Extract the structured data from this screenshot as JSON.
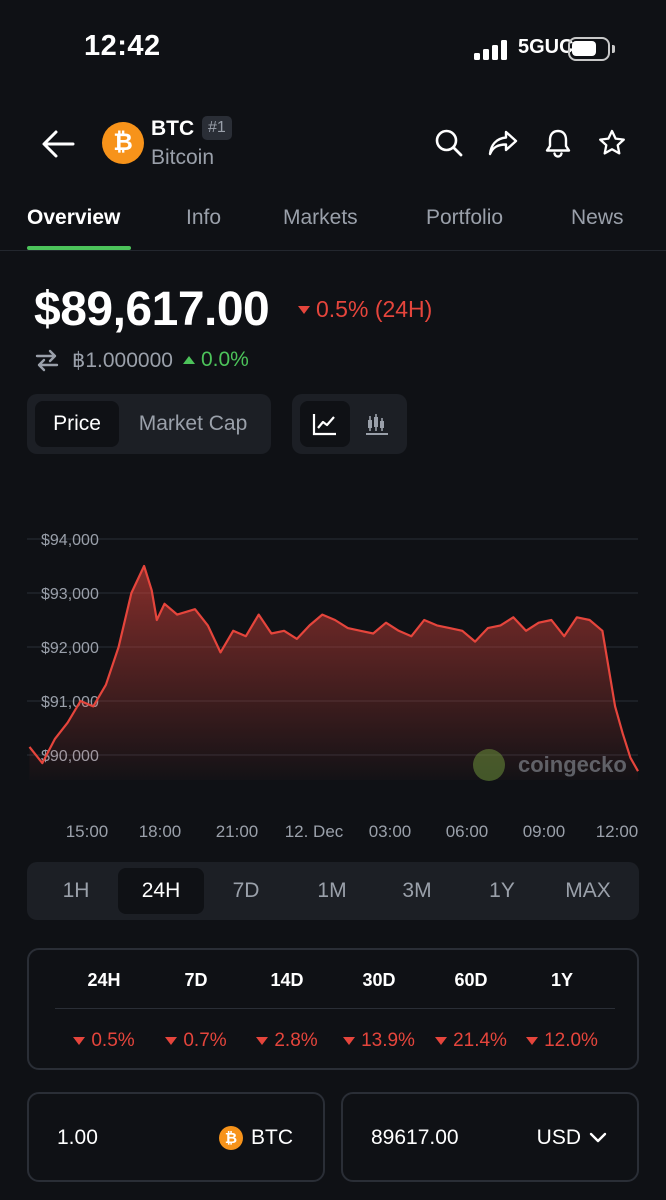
{
  "status": {
    "time": "12:42",
    "network": "5GUC"
  },
  "coin": {
    "symbol": "BTC",
    "rank": "#1",
    "name": "Bitcoin",
    "brand_color": "#f7931a"
  },
  "header_icons": [
    "search-icon",
    "share-icon",
    "bell-icon",
    "star-icon"
  ],
  "tabs": [
    {
      "label": "Overview",
      "active": true
    },
    {
      "label": "Info"
    },
    {
      "label": "Markets"
    },
    {
      "label": "Portfolio"
    },
    {
      "label": "News"
    }
  ],
  "price": {
    "value": "$89,617.00",
    "change_24h": "0.5% (24H)",
    "btc_value": "฿1.000000",
    "btc_change": "0.0%"
  },
  "toggles": {
    "price_label": "Price",
    "market_cap_label": "Market Cap",
    "chart_modes": [
      "line-chart-icon",
      "candlestick-icon"
    ]
  },
  "chart_data": {
    "type": "area",
    "y_tick_labels": [
      "$94,000",
      "$93,000",
      "$92,000",
      "$91,000",
      "$90,000"
    ],
    "ylim": [
      89600,
      94300
    ],
    "x_tick_labels": [
      "15:00",
      "18:00",
      "21:00",
      "12. Dec",
      "03:00",
      "06:00",
      "09:00",
      "12:00"
    ],
    "x": [
      13.0,
      13.5,
      14.0,
      14.5,
      15.0,
      15.5,
      16.0,
      16.5,
      17.0,
      17.5,
      17.8,
      18.0,
      18.3,
      18.8,
      19.5,
      20.0,
      20.5,
      21.0,
      21.5,
      22.0,
      22.5,
      23.0,
      23.5,
      24.0,
      24.5,
      25.0,
      25.5,
      26.0,
      26.5,
      27.0,
      27.5,
      28.0,
      28.5,
      29.0,
      29.5,
      30.0,
      30.5,
      31.0,
      31.5,
      32.0,
      32.5,
      33.0,
      33.5,
      34.0,
      34.5,
      35.0,
      35.5,
      36.0,
      36.3,
      36.6,
      36.9
    ],
    "values": [
      90150,
      89850,
      90300,
      90600,
      91000,
      90900,
      91300,
      92000,
      93000,
      93500,
      93050,
      92500,
      92800,
      92600,
      92700,
      92400,
      91900,
      92300,
      92200,
      92600,
      92250,
      92300,
      92150,
      92400,
      92600,
      92500,
      92350,
      92300,
      92250,
      92450,
      92300,
      92200,
      92500,
      92400,
      92350,
      92300,
      92100,
      92350,
      92400,
      92550,
      92300,
      92450,
      92500,
      92200,
      92550,
      92500,
      92300,
      90900,
      90400,
      89950,
      89700
    ],
    "series_color": "#e5453c",
    "watermark": "coingecko",
    "grid": true
  },
  "ranges": [
    {
      "label": "1H"
    },
    {
      "label": "24H",
      "active": true
    },
    {
      "label": "7D"
    },
    {
      "label": "1M"
    },
    {
      "label": "3M"
    },
    {
      "label": "1Y"
    },
    {
      "label": "MAX"
    }
  ],
  "performance": {
    "headers": [
      "24H",
      "7D",
      "14D",
      "30D",
      "60D",
      "1Y"
    ],
    "values": [
      "0.5%",
      "0.7%",
      "2.8%",
      "13.9%",
      "21.4%",
      "12.0%"
    ]
  },
  "converter": {
    "from_value": "1.00",
    "from_unit": "BTC",
    "to_value": "89617.00",
    "to_unit": "USD"
  }
}
